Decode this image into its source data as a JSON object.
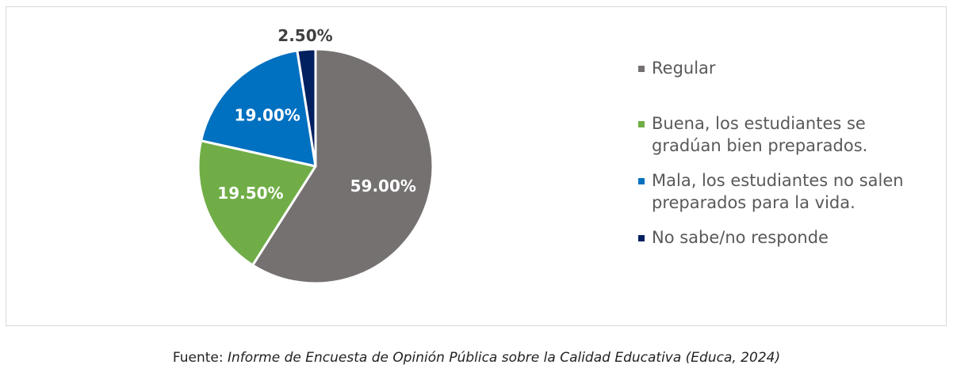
{
  "chart_data": {
    "type": "pie",
    "start": "top",
    "direction": "clockwise",
    "slices": [
      {
        "label": "Regular",
        "value": 59.0,
        "data_label": "59.00%",
        "color": "#767171",
        "label_color": "#ffffff"
      },
      {
        "label": "Buena, los estudiantes se gradúan bien preparados.",
        "value": 19.5,
        "data_label": "19.50%",
        "color": "#70ad47",
        "label_color": "#ffffff"
      },
      {
        "label": "Mala, los estudiantes no salen preparados para la vida.",
        "value": 19.0,
        "data_label": "19.00%",
        "color": "#0070c0",
        "label_color": "#ffffff"
      },
      {
        "label": "No sabe/no responde",
        "value": 2.5,
        "data_label": "2.50%",
        "color": "#002060",
        "label_color": "#404040"
      }
    ],
    "legend_position": "right"
  },
  "caption": {
    "prefix": "Fuente: ",
    "source": "Informe de Encuesta de Opinión Pública sobre la Calidad Educativa (Educa, 2024)"
  }
}
